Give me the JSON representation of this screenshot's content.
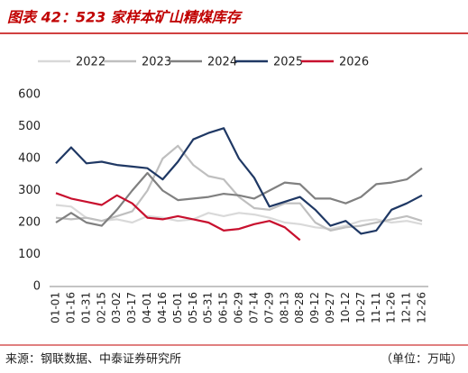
{
  "chart_data": {
    "type": "line",
    "title": "图表 42：523 家样本矿山精煤库存",
    "source": "来源：钢联数据、中泰证券研究所",
    "unit": "（单位：万吨）",
    "categories": [
      "01-01",
      "01-16",
      "01-31",
      "02-15",
      "03-02",
      "03-17",
      "04-01",
      "04-16",
      "05-01",
      "05-16",
      "05-31",
      "06-15",
      "06-29",
      "07-14",
      "07-29",
      "08-13",
      "08-28",
      "09-12",
      "09-27",
      "10-12",
      "10-27",
      "11-11",
      "11-26",
      "12-11",
      "12-26"
    ],
    "series": [
      {
        "name": "2022",
        "color": "#d9d9d9",
        "values": [
          255,
          250,
          215,
          205,
          210,
          200,
          220,
          215,
          205,
          210,
          230,
          220,
          230,
          225,
          215,
          200,
          195,
          185,
          180,
          190,
          205,
          210,
          200,
          205,
          195
        ]
      },
      {
        "name": "2023",
        "color": "#bfbfbf",
        "values": [
          215,
          210,
          215,
          205,
          220,
          235,
          300,
          400,
          440,
          380,
          345,
          335,
          280,
          245,
          240,
          260,
          260,
          200,
          175,
          185,
          190,
          200,
          210,
          220,
          205
        ]
      },
      {
        "name": "2024",
        "color": "#808080",
        "values": [
          200,
          230,
          200,
          190,
          240,
          300,
          355,
          300,
          270,
          275,
          280,
          290,
          285,
          275,
          300,
          325,
          320,
          275,
          275,
          260,
          280,
          320,
          325,
          335,
          370
        ]
      },
      {
        "name": "2025",
        "color": "#1f3864",
        "values": [
          385,
          435,
          385,
          390,
          380,
          375,
          370,
          335,
          390,
          460,
          480,
          495,
          400,
          340,
          250,
          265,
          280,
          240,
          190,
          205,
          165,
          175,
          240,
          260,
          285
        ]
      },
      {
        "name": "2026",
        "color": "#c8102e",
        "values": [
          292,
          275,
          265,
          255,
          285,
          260,
          215,
          210,
          220,
          210,
          200,
          175,
          180,
          195,
          205,
          185,
          145,
          null,
          null,
          null,
          null,
          null,
          null,
          null,
          null
        ]
      }
    ],
    "ylim": [
      0,
      600
    ],
    "yticks": [
      0,
      100,
      200,
      300,
      400,
      500,
      600
    ]
  }
}
